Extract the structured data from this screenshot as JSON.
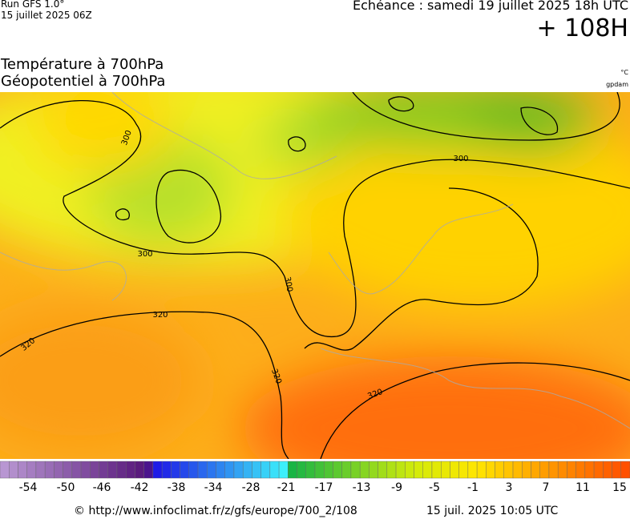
{
  "header": {
    "run": "Run GFS 1.0°",
    "run_date": "15 juillet 2025 06Z",
    "echeance": "Echéance : samedi 19 juillet 2025 18h UTC",
    "lead": "+ 108H"
  },
  "titles": {
    "line1": "Température à 700hPa",
    "line2": "Géopotentiel à 700hPa",
    "unit1": "°C",
    "unit2": "gpdam"
  },
  "contour_labels": [
    "300",
    "300",
    "300",
    "300",
    "320",
    "320",
    "320",
    "320"
  ],
  "colorbar": {
    "labels": [
      "-54",
      "-50",
      "-46",
      "-42",
      "-38",
      "-34",
      "-28",
      "-21",
      "-17",
      "-13",
      "-9",
      "-5",
      "-1",
      "3",
      "7",
      "11",
      "15"
    ]
  },
  "footer": {
    "url": "© http://www.infoclimat.fr/z/gfs/europe/700_2/108",
    "time": "15 juil. 2025 10:05 UTC"
  }
}
